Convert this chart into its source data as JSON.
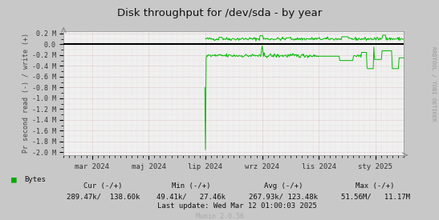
{
  "title": "Disk throughput for /dev/sda - by year",
  "ylabel": "Pr second read (-) / write (+)",
  "yticks": [
    0.2,
    0.0,
    -0.2,
    -0.4,
    -0.6,
    -0.8,
    -1.0,
    -1.2,
    -1.4,
    -1.6,
    -1.8,
    -2.0
  ],
  "ytick_labels": [
    "0.2 M",
    "0.0",
    "-0.2 M",
    "-0.4 M",
    "-0.6 M",
    "-0.8 M",
    "-1.0 M",
    "-1.2 M",
    "-1.4 M",
    "-1.6 M",
    "-1.8 M",
    "-2.0 M"
  ],
  "xtick_labels": [
    "mar 2024",
    "maj 2024",
    "lip 2024",
    "wrz 2024",
    "lis 2024",
    "sty 2025"
  ],
  "ylim": [
    -2.05,
    0.25
  ],
  "fig_bg": "#c8c8c8",
  "plot_bg": "#f0f0f0",
  "line_color": "#00bb00",
  "zero_line_color": "#000000",
  "grid_major_color": "#cc9999",
  "grid_minor_color": "#ddbbbb",
  "right_label": "RRDTOOL / TOBI OETIKER",
  "legend_label": "Bytes",
  "legend_color": "#00aa00",
  "footer_cur": "Cur (-/+)",
  "footer_cur_val": "289.47k/  138.60k",
  "footer_min": "Min (-/+)",
  "footer_min_val": "49.41k/   27.46k",
  "footer_avg": "Avg (-/+)",
  "footer_avg_val": "267.93k/ 123.48k",
  "footer_max": "Max (-/+)",
  "footer_max_val": "51.56M/   11.17M",
  "footer_update": "Last update: Wed Mar 12 01:00:03 2025",
  "footer_munin": "Munin 2.0.56",
  "n_points": 500
}
